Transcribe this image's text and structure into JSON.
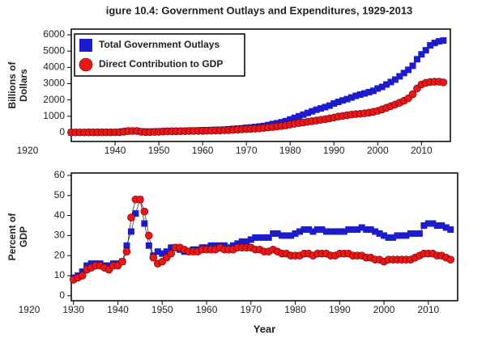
{
  "chart_data": [
    {
      "type": "scatter",
      "title": "igure 10.4: Government Outlays and Expenditures, 1929-2013",
      "ylabel": [
        "Billions of",
        "Dollars"
      ],
      "legend": "upper left",
      "x": [
        1930,
        1931,
        1932,
        1933,
        1934,
        1935,
        1936,
        1937,
        1938,
        1939,
        1940,
        1941,
        1942,
        1943,
        1944,
        1945,
        1946,
        1947,
        1948,
        1949,
        1950,
        1951,
        1952,
        1953,
        1954,
        1955,
        1956,
        1957,
        1958,
        1959,
        1960,
        1961,
        1962,
        1963,
        1964,
        1965,
        1966,
        1967,
        1968,
        1969,
        1970,
        1971,
        1972,
        1973,
        1974,
        1975,
        1976,
        1977,
        1978,
        1979,
        1980,
        1981,
        1982,
        1983,
        1984,
        1985,
        1986,
        1987,
        1988,
        1989,
        1990,
        1991,
        1992,
        1993,
        1994,
        1995,
        1996,
        1997,
        1998,
        1999,
        2000,
        2001,
        2002,
        2003,
        2004,
        2005,
        2006,
        2007,
        2008,
        2009,
        2010,
        2011,
        2012,
        2013,
        2014,
        2015
      ],
      "xlim": [
        1930,
        2016.6
      ],
      "xticks": [
        1920,
        1940,
        1950,
        1960,
        1970,
        1980,
        1990,
        2000,
        2010
      ],
      "ylim": [
        -550,
        6350
      ],
      "yticks": [
        0,
        1000,
        2000,
        3000,
        4000,
        5000,
        6000
      ],
      "series": [
        {
          "name": "Total Government Outlays",
          "color": "#1c1ccc",
          "marker": "square",
          "values": [
            10,
            10,
            10,
            11,
            12,
            13,
            14,
            15,
            15,
            17,
            18,
            28,
            60,
            90,
            100,
            95,
            65,
            50,
            50,
            55,
            60,
            75,
            90,
            95,
            92,
            95,
            100,
            110,
            120,
            125,
            135,
            140,
            150,
            160,
            170,
            180,
            200,
            220,
            240,
            260,
            290,
            310,
            340,
            370,
            400,
            460,
            520,
            570,
            630,
            700,
            800,
            900,
            1000,
            1100,
            1200,
            1300,
            1400,
            1480,
            1560,
            1650,
            1780,
            1880,
            1970,
            2050,
            2150,
            2250,
            2330,
            2400,
            2480,
            2560,
            2700,
            2800,
            2950,
            3100,
            3250,
            3450,
            3650,
            3850,
            4100,
            4500,
            4800,
            5050,
            5350,
            5500,
            5600,
            5650
          ]
        },
        {
          "name": "Direct Contribution to GDP",
          "color": "#e81818",
          "marker": "circle",
          "values": [
            9,
            9,
            9,
            9,
            10,
            11,
            12,
            13,
            13,
            14,
            15,
            25,
            55,
            85,
            95,
            90,
            40,
            30,
            30,
            35,
            45,
            60,
            75,
            80,
            80,
            82,
            85,
            90,
            95,
            100,
            105,
            110,
            118,
            125,
            130,
            140,
            150,
            165,
            180,
            195,
            210,
            225,
            240,
            255,
            280,
            310,
            340,
            370,
            400,
            440,
            490,
            540,
            580,
            620,
            660,
            700,
            740,
            780,
            820,
            870,
            920,
            980,
            1020,
            1060,
            1100,
            1130,
            1150,
            1180,
            1220,
            1270,
            1330,
            1420,
            1520,
            1620,
            1720,
            1830,
            1950,
            2100,
            2350,
            2700,
            2950,
            3050,
            3100,
            3120,
            3120,
            3080
          ]
        }
      ]
    },
    {
      "type": "line",
      "ylabel": [
        "Percent of",
        "GDP"
      ],
      "xlabel": "Year",
      "x": [
        1930,
        1931,
        1932,
        1933,
        1934,
        1935,
        1936,
        1937,
        1938,
        1939,
        1940,
        1941,
        1942,
        1943,
        1944,
        1945,
        1946,
        1947,
        1948,
        1949,
        1950,
        1951,
        1952,
        1953,
        1954,
        1955,
        1956,
        1957,
        1958,
        1959,
        1960,
        1961,
        1962,
        1963,
        1964,
        1965,
        1966,
        1967,
        1968,
        1969,
        1970,
        1971,
        1972,
        1973,
        1974,
        1975,
        1976,
        1977,
        1978,
        1979,
        1980,
        1981,
        1982,
        1983,
        1984,
        1985,
        1986,
        1987,
        1988,
        1989,
        1990,
        1991,
        1992,
        1993,
        1994,
        1995,
        1996,
        1997,
        1998,
        1999,
        2000,
        2001,
        2002,
        2003,
        2004,
        2005,
        2006,
        2007,
        2008,
        2009,
        2010,
        2011,
        2012,
        2013,
        2014,
        2015
      ],
      "xlim": [
        1929.5,
        2016.6
      ],
      "xticks": [
        1920,
        1930,
        1940,
        1950,
        1960,
        1970,
        1980,
        1990,
        2000,
        2010
      ],
      "ylim": [
        -2.5,
        61.2
      ],
      "yticks": [
        0,
        10,
        20,
        30,
        40,
        50,
        60
      ],
      "series": [
        {
          "name": "Total Government Outlays",
          "color": "#1c1ccc",
          "marker": "square",
          "values": [
            9,
            10,
            12,
            15,
            16,
            16,
            16,
            15,
            15,
            16,
            16,
            17,
            25,
            32,
            41,
            48,
            36,
            25,
            20,
            22,
            21,
            22,
            24,
            24,
            23,
            22,
            22,
            23,
            23,
            24,
            24,
            25,
            25,
            25,
            25,
            24,
            25,
            26,
            27,
            27,
            28,
            29,
            29,
            29,
            29,
            31,
            31,
            30,
            30,
            30,
            31,
            32,
            33,
            33,
            32,
            33,
            33,
            32,
            32,
            32,
            32,
            32,
            33,
            33,
            33,
            34,
            33,
            33,
            32,
            31,
            30,
            29,
            29,
            30,
            30,
            30,
            31,
            31,
            31,
            35,
            36,
            36,
            35,
            35,
            34,
            33
          ]
        },
        {
          "name": "Direct Contribution to GDP",
          "color": "#e81818",
          "marker": "circle",
          "values": [
            8,
            9,
            10,
            13,
            14,
            15,
            15,
            14,
            13,
            15,
            15,
            17,
            22,
            39,
            48,
            48,
            42,
            30,
            19,
            16,
            17,
            19,
            21,
            24,
            24,
            23,
            22,
            22,
            22,
            23,
            23,
            23,
            23,
            24,
            23,
            23,
            23,
            24,
            24,
            24,
            24,
            23,
            23,
            22,
            22,
            23,
            22,
            21,
            21,
            20,
            20,
            20,
            21,
            21,
            20,
            21,
            21,
            21,
            20,
            20,
            21,
            21,
            21,
            20,
            20,
            20,
            19,
            19,
            18,
            18,
            17,
            18,
            18,
            18,
            18,
            18,
            18,
            19,
            20,
            21,
            21,
            21,
            20,
            20,
            19,
            18
          ]
        }
      ]
    }
  ]
}
